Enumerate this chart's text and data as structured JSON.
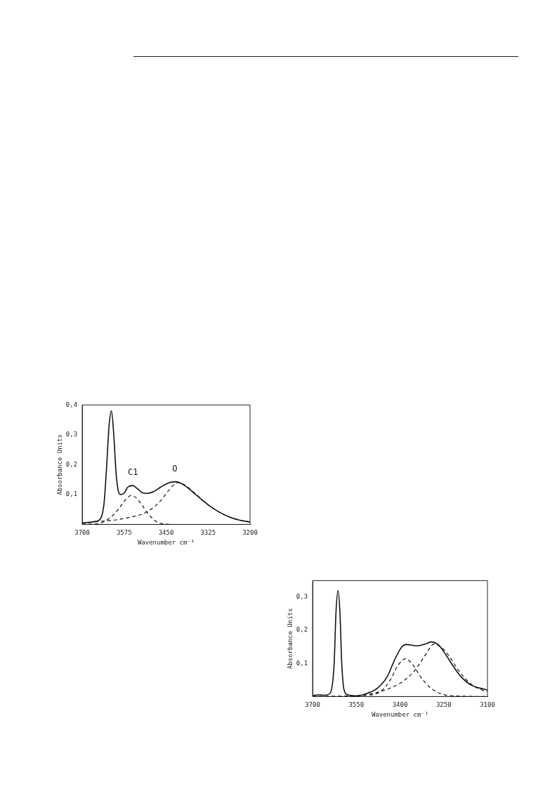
{
  "chart_data": [
    {
      "type": "line",
      "xlabel": "Wavenumber cm⁻¹",
      "ylabel": "Absorbance Units",
      "xlim": [
        3700,
        3200
      ],
      "xticks": [
        3700,
        3575,
        3450,
        3325,
        3200
      ],
      "ylim": [
        0,
        0.4
      ],
      "yticks": [
        {
          "value": 0.1,
          "label": "0,1"
        },
        {
          "value": 0.2,
          "label": "0,2"
        },
        {
          "value": 0.3,
          "label": "0,3"
        },
        {
          "value": 0.4,
          "label": "0,4"
        }
      ],
      "grid": false,
      "legend": false,
      "marker": "none",
      "annotations": [
        {
          "text": "C1",
          "x": 3549,
          "y": 0.13
        },
        {
          "text": "O",
          "x": 3424,
          "y": 0.143
        }
      ],
      "series": [
        {
          "color": "#111111",
          "line_style": "solid",
          "x": [
            3700,
            3660,
            3645,
            3635,
            3628,
            3620,
            3613,
            3606,
            3599,
            3592,
            3585,
            3575,
            3564,
            3549,
            3536,
            3522,
            3508,
            3487,
            3466,
            3445,
            3424,
            3410,
            3388,
            3367,
            3346,
            3318,
            3290,
            3262,
            3234,
            3200
          ],
          "values": [
            0.005,
            0.01,
            0.02,
            0.07,
            0.18,
            0.33,
            0.38,
            0.3,
            0.17,
            0.11,
            0.1,
            0.105,
            0.125,
            0.13,
            0.12,
            0.107,
            0.104,
            0.11,
            0.125,
            0.138,
            0.143,
            0.14,
            0.125,
            0.105,
            0.085,
            0.06,
            0.04,
            0.025,
            0.015,
            0.008
          ]
        },
        {
          "color": "#111111",
          "line_style": "dashed",
          "x": [
            3700,
            3650,
            3620,
            3600,
            3580,
            3565,
            3554,
            3540,
            3525,
            3510,
            3495,
            3480,
            3460,
            3440
          ],
          "values": [
            0,
            0.003,
            0.02,
            0.04,
            0.07,
            0.09,
            0.097,
            0.09,
            0.07,
            0.045,
            0.025,
            0.01,
            0.002,
            0
          ]
        },
        {
          "color": "#111111",
          "line_style": "dashed",
          "x": [
            3700,
            3650,
            3600,
            3554,
            3520,
            3490,
            3466,
            3445,
            3430,
            3417,
            3400,
            3380,
            3360,
            3340,
            3318,
            3290,
            3262,
            3234,
            3200
          ],
          "values": [
            0.003,
            0.01,
            0.015,
            0.025,
            0.035,
            0.055,
            0.08,
            0.11,
            0.13,
            0.14,
            0.135,
            0.12,
            0.1,
            0.08,
            0.06,
            0.04,
            0.025,
            0.015,
            0.008
          ]
        }
      ]
    },
    {
      "type": "line",
      "xlabel": "Wavenumber cm⁻¹",
      "ylabel": "Absorbance Units",
      "xlim": [
        3700,
        3100
      ],
      "xticks": [
        3700,
        3550,
        3400,
        3250,
        3100
      ],
      "ylim": [
        0,
        0.35
      ],
      "yticks": [
        {
          "value": 0.1,
          "label": "0,1"
        },
        {
          "value": 0.2,
          "label": "0,2"
        },
        {
          "value": 0.3,
          "label": "0,3"
        }
      ],
      "grid": false,
      "legend": false,
      "marker": "none",
      "series": [
        {
          "color": "#111111",
          "line_style": "solid",
          "x": [
            3700,
            3676,
            3660,
            3640,
            3626,
            3620,
            3613,
            3606,
            3600,
            3592,
            3579,
            3546,
            3512,
            3478,
            3444,
            3419,
            3394,
            3377,
            3343,
            3309,
            3293,
            3267,
            3242,
            3216,
            3191,
            3157,
            3124,
            3100
          ],
          "values": [
            0.003,
            0.005,
            0.004,
            0.01,
            0.1,
            0.25,
            0.32,
            0.25,
            0.1,
            0.02,
            0.005,
            0.002,
            0.01,
            0.025,
            0.06,
            0.11,
            0.15,
            0.157,
            0.153,
            0.16,
            0.165,
            0.155,
            0.125,
            0.09,
            0.06,
            0.035,
            0.025,
            0.02
          ]
        },
        {
          "color": "#111111",
          "line_style": "dashed",
          "x": [
            3700,
            3500,
            3460,
            3430,
            3410,
            3381,
            3355,
            3330,
            3300,
            3270,
            3230,
            3100
          ],
          "values": [
            0,
            0.005,
            0.02,
            0.055,
            0.09,
            0.114,
            0.095,
            0.06,
            0.03,
            0.012,
            0.003,
            0
          ]
        },
        {
          "color": "#111111",
          "line_style": "dashed",
          "x": [
            3700,
            3550,
            3500,
            3450,
            3400,
            3370,
            3340,
            3310,
            3284,
            3260,
            3230,
            3200,
            3160,
            3120,
            3100
          ],
          "values": [
            0,
            0.002,
            0.008,
            0.02,
            0.04,
            0.06,
            0.09,
            0.13,
            0.158,
            0.15,
            0.12,
            0.08,
            0.04,
            0.02,
            0.015
          ]
        }
      ]
    }
  ]
}
